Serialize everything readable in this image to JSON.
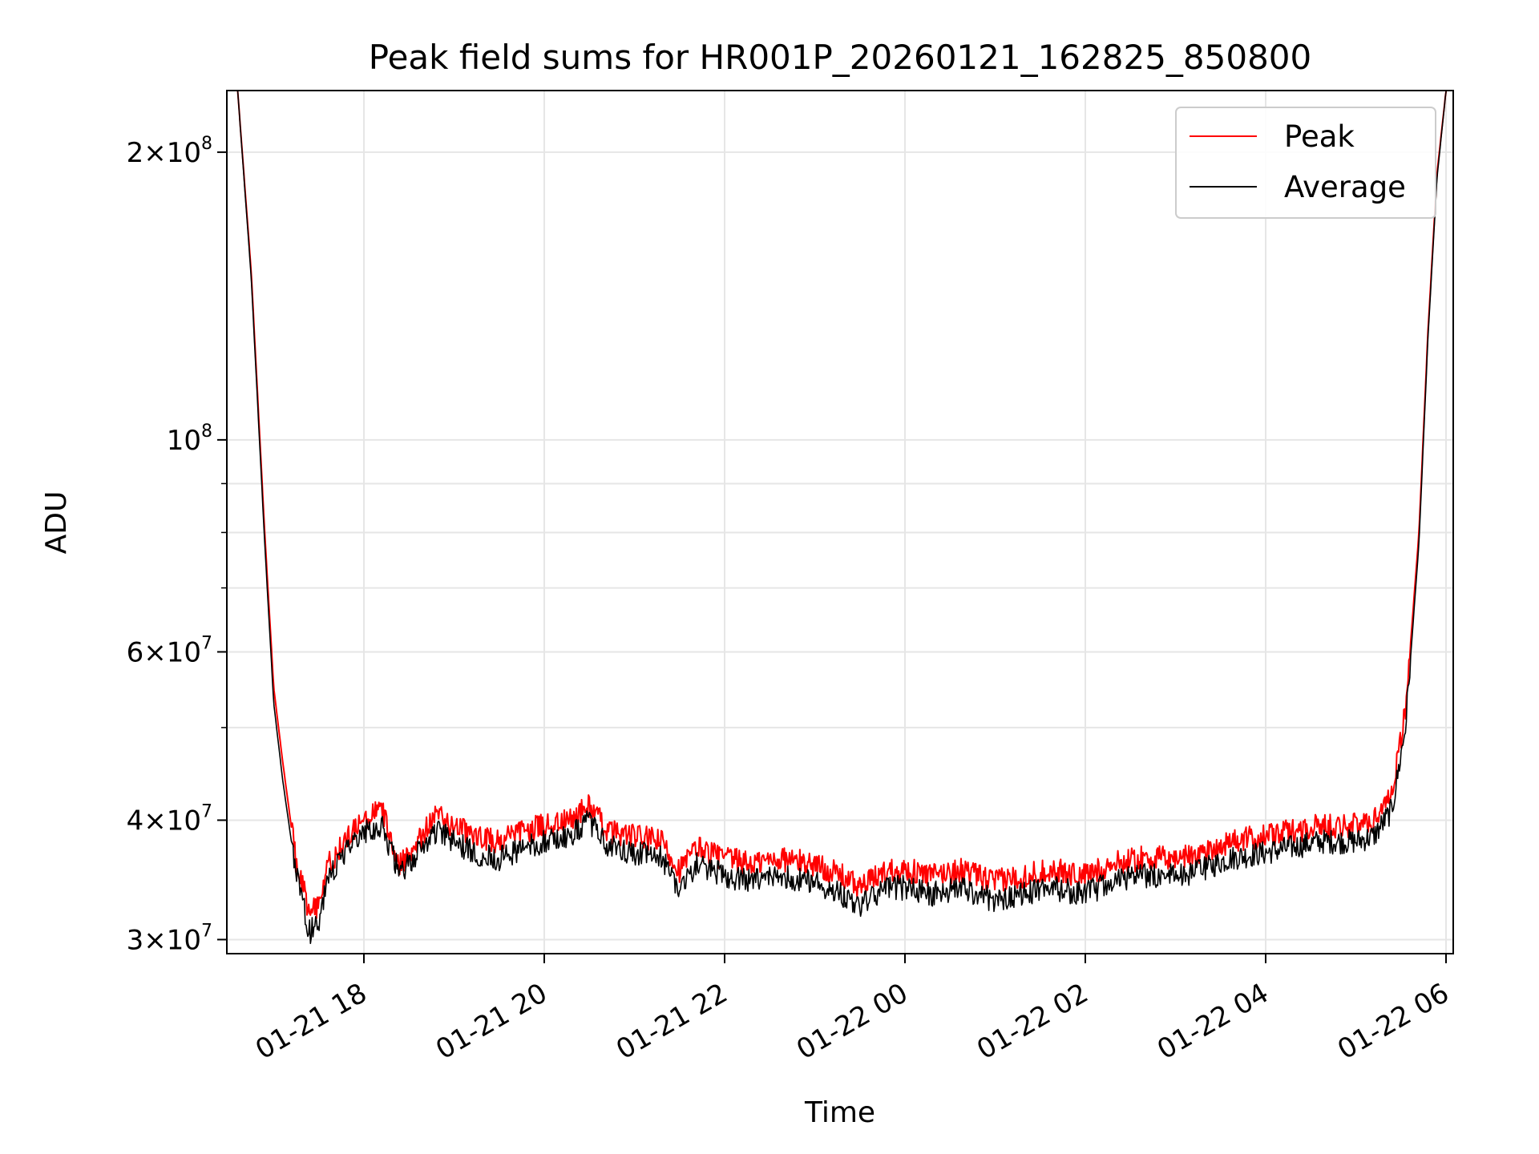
{
  "chart_data": {
    "type": "line",
    "title": "Peak field sums for HR001P_20260121_162825_850800",
    "xlabel": "Time",
    "ylabel": "ADU",
    "yscale": "log",
    "ylim": [
      29000000,
      232000000
    ],
    "xlim_hours": [
      16.48,
      30.08
    ],
    "grid": true,
    "legend_position": "upper-right",
    "x_ticks": [
      {
        "label": "01-21 18",
        "hour": 18
      },
      {
        "label": "01-21 20",
        "hour": 20
      },
      {
        "label": "01-21 22",
        "hour": 22
      },
      {
        "label": "01-22 00",
        "hour": 24
      },
      {
        "label": "01-22 02",
        "hour": 26
      },
      {
        "label": "01-22 04",
        "hour": 28
      },
      {
        "label": "01-22 06",
        "hour": 30
      }
    ],
    "y_major_ticks": [
      {
        "value": 30000000,
        "mantissa": "3",
        "exponent": "7"
      },
      {
        "value": 40000000,
        "mantissa": "4",
        "exponent": "7"
      },
      {
        "value": 60000000,
        "mantissa": "6",
        "exponent": "7"
      },
      {
        "value": 100000000,
        "mantissa": "",
        "exponent": "8"
      },
      {
        "value": 200000000,
        "mantissa": "2",
        "exponent": "8"
      }
    ],
    "y_minor_ticks": [
      50000000,
      70000000,
      80000000,
      90000000
    ],
    "series": [
      {
        "name": "Peak",
        "color": "#ff0000",
        "x_hours": [
          16.6,
          16.75,
          16.9,
          17.0,
          17.1,
          17.25,
          17.4,
          17.5,
          17.6,
          17.8,
          18.0,
          18.2,
          18.4,
          18.6,
          18.8,
          19.0,
          19.2,
          19.5,
          19.8,
          20.0,
          20.3,
          20.5,
          20.7,
          21.0,
          21.3,
          21.5,
          21.7,
          22.0,
          22.3,
          22.6,
          23.0,
          23.3,
          23.5,
          23.8,
          24.0,
          24.3,
          24.6,
          25.0,
          25.3,
          25.6,
          26.0,
          26.3,
          26.6,
          27.0,
          27.3,
          27.6,
          28.0,
          28.3,
          28.6,
          29.0,
          29.2,
          29.4,
          29.55,
          29.7,
          29.8,
          29.9,
          30.0,
          30.05
        ],
        "values": [
          232000000,
          150000000,
          80000000,
          55000000,
          46000000,
          36000000,
          32000000,
          32500000,
          36000000,
          38000000,
          40000000,
          41000000,
          36000000,
          38000000,
          40500000,
          39500000,
          38500000,
          38000000,
          39000000,
          39500000,
          40000000,
          41500000,
          39000000,
          38500000,
          38000000,
          35500000,
          37500000,
          36500000,
          36000000,
          36500000,
          36000000,
          35000000,
          34000000,
          35500000,
          35500000,
          35000000,
          35500000,
          34500000,
          35000000,
          35500000,
          35000000,
          36000000,
          36500000,
          36500000,
          37000000,
          38000000,
          38500000,
          39000000,
          39500000,
          39500000,
          40000000,
          43000000,
          52000000,
          80000000,
          130000000,
          190000000,
          232000000,
          232000000
        ]
      },
      {
        "name": "Average",
        "color": "#000000",
        "x_hours": [
          16.6,
          16.75,
          16.9,
          17.0,
          17.1,
          17.25,
          17.4,
          17.5,
          17.6,
          17.8,
          18.0,
          18.2,
          18.4,
          18.6,
          18.8,
          19.0,
          19.2,
          19.5,
          19.8,
          20.0,
          20.3,
          20.5,
          20.7,
          21.0,
          21.3,
          21.5,
          21.7,
          22.0,
          22.3,
          22.6,
          23.0,
          23.3,
          23.5,
          23.8,
          24.0,
          24.3,
          24.6,
          25.0,
          25.3,
          25.6,
          26.0,
          26.3,
          26.6,
          27.0,
          27.3,
          27.6,
          28.0,
          28.3,
          28.6,
          29.0,
          29.2,
          29.4,
          29.55,
          29.7,
          29.8,
          29.9,
          30.0,
          30.05
        ],
        "values": [
          232000000,
          148000000,
          78000000,
          53000000,
          44000000,
          35000000,
          30500000,
          31500000,
          35000000,
          37000000,
          39000000,
          39500000,
          35000000,
          37000000,
          39000000,
          38000000,
          37000000,
          36500000,
          37500000,
          38000000,
          38500000,
          40000000,
          37500000,
          37000000,
          36500000,
          34000000,
          36000000,
          35000000,
          34500000,
          35000000,
          34500000,
          33500000,
          32500000,
          34000000,
          34000000,
          33500000,
          34000000,
          33000000,
          33500000,
          34000000,
          33500000,
          34500000,
          35000000,
          35000000,
          35500000,
          36500000,
          37000000,
          37500000,
          38000000,
          38000000,
          38500000,
          41000000,
          50000000,
          78000000,
          128000000,
          188000000,
          232000000,
          232000000
        ]
      }
    ]
  }
}
